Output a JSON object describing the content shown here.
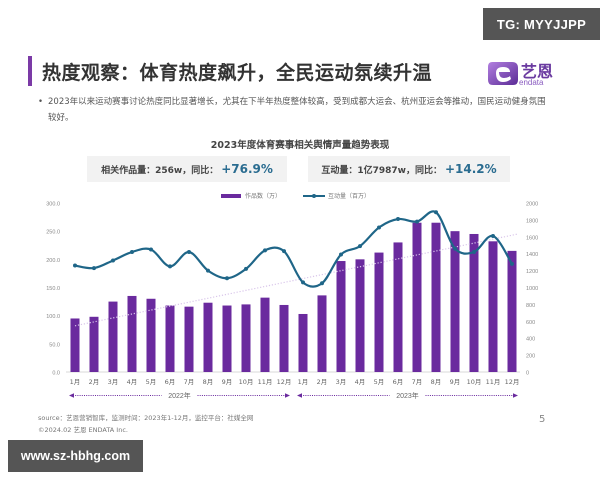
{
  "watermarks": {
    "top": "TG: MYYJJPP",
    "bottom": "www.sz-hbhg.com"
  },
  "header": {
    "title": "热度观察：体育热度飙升，全民运动氛续升温",
    "logo_text": "艺恩",
    "logo_sub": "endata",
    "accent_color": "#7b3aa6"
  },
  "bullet": {
    "marker": "•",
    "text": "2023年以来运动赛事讨论热度同比显著增长，尤其在下半年热度整体较高，受到成都大运会、杭州亚运会等推动，国民运动健身氛围较好。"
  },
  "kpis": {
    "left": {
      "label": "相关作品量：256w，同比：",
      "value": "+76.9%"
    },
    "right": {
      "label": "互动量：1亿7987w，同比：",
      "value": "+14.2%"
    }
  },
  "chart_data": {
    "type": "bar+line",
    "title": "2023年度体育赛事相关舆情声量趋势表现",
    "categories": [
      "1月",
      "2月",
      "3月",
      "4月",
      "5月",
      "6月",
      "7月",
      "8月",
      "9月",
      "10月",
      "11月",
      "12月",
      "1月",
      "2月",
      "3月",
      "4月",
      "5月",
      "6月",
      "7月",
      "8月",
      "9月",
      "10月",
      "11月",
      "12月"
    ],
    "year_groups": [
      {
        "label": "2022年",
        "start": 0,
        "end": 11
      },
      {
        "label": "2023年",
        "start": 12,
        "end": 23
      }
    ],
    "series": [
      {
        "name": "作品数（万）",
        "type": "bar",
        "axis": "left",
        "color": "#6a2a9e",
        "values": [
          95,
          98,
          125,
          135,
          130,
          118,
          116,
          123,
          118,
          120,
          132,
          119,
          103,
          136,
          197,
          200,
          212,
          230,
          265,
          265,
          250,
          245,
          232,
          215
        ]
      },
      {
        "name": "互动量（百万）",
        "type": "line",
        "axis": "right",
        "color": "#1f6688",
        "values": [
          1260,
          1230,
          1320,
          1420,
          1450,
          1250,
          1420,
          1200,
          1110,
          1220,
          1440,
          1430,
          1060,
          1050,
          1390,
          1490,
          1710,
          1810,
          1780,
          1890,
          1460,
          1420,
          1610,
          1280
        ]
      }
    ],
    "left_axis": {
      "min": 0,
      "max": 300,
      "ticks": [
        "0.0",
        "50.0",
        "100.0",
        "150.0",
        "200.0",
        "250.0",
        "300.0"
      ]
    },
    "right_axis": {
      "min": 0,
      "max": 2000,
      "ticks": [
        "0",
        "200",
        "400",
        "600",
        "800",
        "1000",
        "1200",
        "1400",
        "1600",
        "1800",
        "2000"
      ]
    },
    "trendline": {
      "style": "dotted",
      "color": "#d9c6ea",
      "from": 82,
      "to": 245
    },
    "legend": {
      "position": "top",
      "items": [
        "作品数（万）",
        "互动量（百万）"
      ]
    },
    "grid": false
  },
  "footer": {
    "source": "source：艺恩营销智库，监测时间：2023年1-12月，监控平台：社媒全网",
    "copyright": "©2024.02  艺恩 ENDATA Inc.",
    "page_number": "5"
  }
}
